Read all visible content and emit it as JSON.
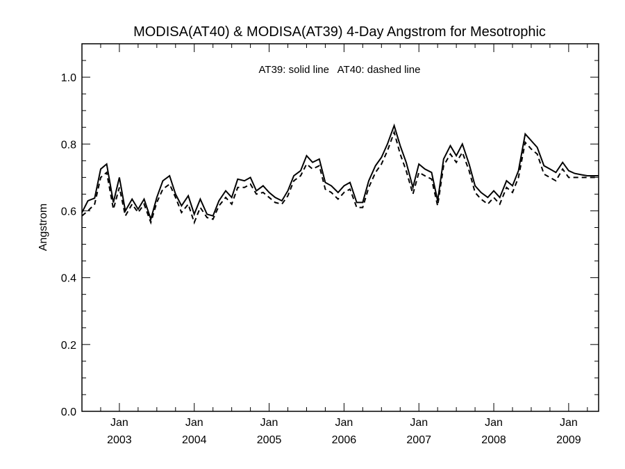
{
  "chart_data": {
    "type": "line",
    "title": "MODISA(AT40) & MODISA(AT39) 4-Day Angstrom for Mesotrophic",
    "annotation": "AT39: solid line   AT40: dashed line",
    "xlabel": "",
    "ylabel": "Angstrom",
    "xlim": [
      2002.5,
      2009.4
    ],
    "ylim": [
      0.0,
      1.1
    ],
    "yticks": [
      "0.0",
      "0.2",
      "0.4",
      "0.6",
      "0.8",
      "1.0"
    ],
    "xticks": [
      {
        "month": "Jan",
        "year": "2003"
      },
      {
        "month": "Jan",
        "year": "2004"
      },
      {
        "month": "Jan",
        "year": "2005"
      },
      {
        "month": "Jan",
        "year": "2006"
      },
      {
        "month": "Jan",
        "year": "2007"
      },
      {
        "month": "Jan",
        "year": "2008"
      },
      {
        "month": "Jan",
        "year": "2009"
      }
    ],
    "grid": false,
    "x": [
      2002.5,
      2002.58,
      2002.67,
      2002.75,
      2002.83,
      2002.92,
      2003.0,
      2003.08,
      2003.17,
      2003.25,
      2003.33,
      2003.42,
      2003.5,
      2003.58,
      2003.67,
      2003.75,
      2003.83,
      2003.92,
      2004.0,
      2004.08,
      2004.17,
      2004.25,
      2004.33,
      2004.42,
      2004.5,
      2004.58,
      2004.67,
      2004.75,
      2004.83,
      2004.92,
      2005.0,
      2005.08,
      2005.17,
      2005.25,
      2005.33,
      2005.42,
      2005.5,
      2005.58,
      2005.67,
      2005.75,
      2005.83,
      2005.92,
      2006.0,
      2006.08,
      2006.17,
      2006.25,
      2006.33,
      2006.42,
      2006.5,
      2006.58,
      2006.67,
      2006.75,
      2006.83,
      2006.92,
      2007.0,
      2007.08,
      2007.17,
      2007.25,
      2007.33,
      2007.42,
      2007.5,
      2007.58,
      2007.67,
      2007.75,
      2007.83,
      2007.92,
      2008.0,
      2008.08,
      2008.17,
      2008.25,
      2008.33,
      2008.42,
      2008.5,
      2008.58,
      2008.67,
      2008.75,
      2008.83,
      2008.92,
      2009.0,
      2009.08,
      2009.17,
      2009.25,
      2009.33,
      2009.4
    ],
    "series": [
      {
        "name": "AT39",
        "style": "solid",
        "values": [
          0.595,
          0.63,
          0.638,
          0.725,
          0.74,
          0.625,
          0.7,
          0.6,
          0.635,
          0.605,
          0.635,
          0.575,
          0.64,
          0.69,
          0.705,
          0.65,
          0.615,
          0.645,
          0.59,
          0.635,
          0.59,
          0.585,
          0.63,
          0.66,
          0.64,
          0.695,
          0.69,
          0.7,
          0.66,
          0.675,
          0.655,
          0.64,
          0.63,
          0.66,
          0.705,
          0.72,
          0.765,
          0.745,
          0.755,
          0.685,
          0.675,
          0.655,
          0.675,
          0.685,
          0.625,
          0.625,
          0.69,
          0.735,
          0.76,
          0.8,
          0.855,
          0.795,
          0.745,
          0.67,
          0.74,
          0.725,
          0.715,
          0.63,
          0.755,
          0.795,
          0.765,
          0.8,
          0.74,
          0.675,
          0.655,
          0.64,
          0.66,
          0.64,
          0.69,
          0.675,
          0.72,
          0.83,
          0.81,
          0.79,
          0.735,
          0.725,
          0.715,
          0.745,
          0.72,
          0.712,
          0.708,
          0.705,
          0.705,
          0.705
        ]
      },
      {
        "name": "AT40",
        "style": "dashed",
        "values": [
          0.585,
          0.6,
          0.62,
          0.7,
          0.715,
          0.605,
          0.67,
          0.585,
          0.62,
          0.595,
          0.62,
          0.565,
          0.625,
          0.665,
          0.68,
          0.64,
          0.595,
          0.62,
          0.565,
          0.61,
          0.58,
          0.575,
          0.615,
          0.64,
          0.62,
          0.67,
          0.67,
          0.68,
          0.65,
          0.655,
          0.64,
          0.625,
          0.62,
          0.645,
          0.69,
          0.705,
          0.74,
          0.725,
          0.735,
          0.665,
          0.655,
          0.635,
          0.655,
          0.665,
          0.61,
          0.61,
          0.67,
          0.715,
          0.74,
          0.78,
          0.835,
          0.77,
          0.72,
          0.65,
          0.715,
          0.705,
          0.695,
          0.615,
          0.735,
          0.77,
          0.745,
          0.775,
          0.72,
          0.655,
          0.635,
          0.62,
          0.64,
          0.62,
          0.67,
          0.655,
          0.7,
          0.805,
          0.785,
          0.77,
          0.71,
          0.7,
          0.69,
          0.725,
          0.7,
          0.7,
          0.7,
          0.7,
          0.7,
          0.7
        ]
      }
    ]
  }
}
